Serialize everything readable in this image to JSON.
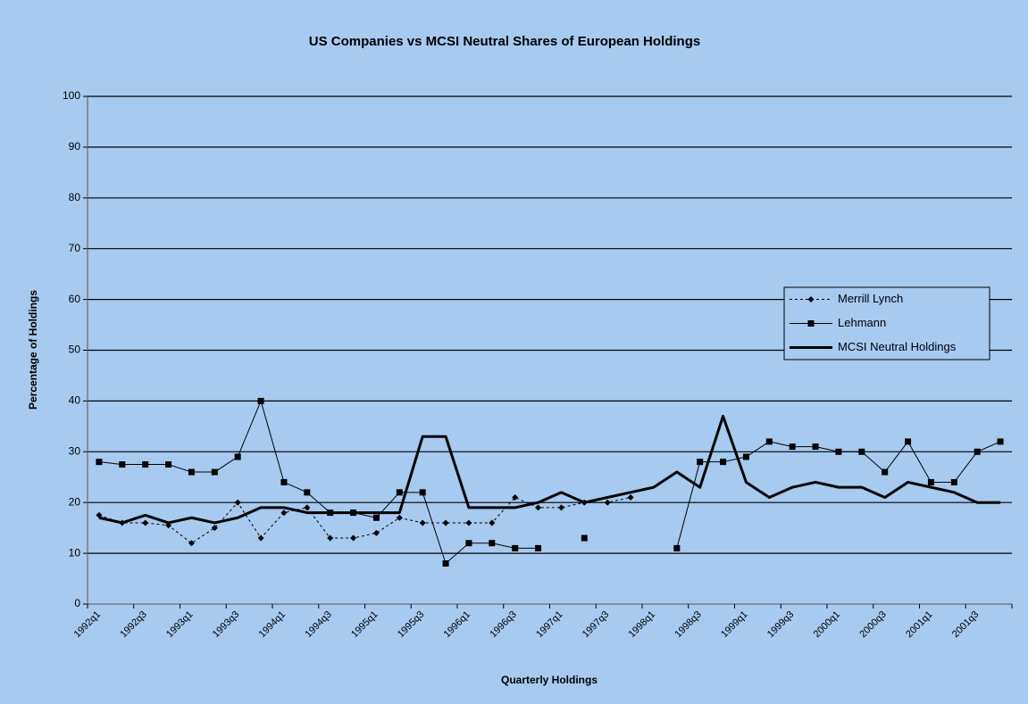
{
  "chart_data": {
    "type": "line",
    "title": "US Companies vs MCSI Neutral Shares of European Holdings",
    "x_label": "Quarterly Holdings",
    "y_label": "Percentage of Holdings",
    "categories": [
      "1992q1",
      null,
      "1992q3",
      null,
      "1993q1",
      null,
      "1993q3",
      null,
      "1994q1",
      null,
      "1994q3",
      null,
      "1995q1",
      null,
      "1995q3",
      null,
      "1996q1",
      null,
      "1996q3",
      null,
      "1997q1",
      null,
      "1997q3",
      null,
      "1998q1",
      null,
      "1998q3",
      null,
      "1999q1",
      null,
      "1999q3",
      null,
      "2000q1",
      null,
      "2000q3",
      null,
      "2001q1",
      null,
      "2001q3",
      null
    ],
    "series": [
      {
        "name": "Merrill Lynch",
        "color": "#000000",
        "linestyle": "dashed",
        "marker": "diamond",
        "values": [
          17.5,
          16,
          16,
          15.5,
          12,
          15,
          20,
          13,
          18,
          19,
          13,
          13,
          14,
          17,
          16,
          16,
          16,
          16,
          21,
          19,
          19,
          20,
          20,
          21,
          null,
          null,
          null,
          null,
          null,
          null,
          null,
          null,
          null,
          null,
          null,
          null,
          null,
          null,
          null,
          null
        ]
      },
      {
        "name": "Lehmann",
        "color": "#000000",
        "linestyle": "solid",
        "marker": "square",
        "values": [
          28,
          27.5,
          27.5,
          27.5,
          26,
          26,
          29,
          40,
          24,
          22,
          18,
          18,
          17,
          22,
          22,
          8,
          12,
          12,
          11,
          11,
          null,
          13,
          null,
          null,
          null,
          11,
          28,
          28,
          29,
          32,
          31,
          31,
          30,
          30,
          26,
          32,
          24,
          24,
          30,
          32
        ]
      },
      {
        "name": "MCSI Neutral Holdings",
        "color": "#000000",
        "linestyle": "solid",
        "marker": null,
        "values": [
          17,
          16,
          17.5,
          16,
          17,
          16,
          17,
          19,
          19,
          18,
          18,
          18,
          18,
          18,
          33,
          33,
          19,
          19,
          19,
          20,
          22,
          20,
          21,
          22,
          23,
          26,
          23,
          37,
          24,
          21,
          23,
          24,
          23,
          23,
          21,
          24,
          23,
          22,
          20,
          20
        ]
      }
    ],
    "ylim": [
      0,
      100
    ],
    "yticks": [
      0,
      10,
      20,
      30,
      40,
      50,
      60,
      70,
      80,
      90,
      100
    ],
    "grid": true,
    "legend": "right"
  }
}
